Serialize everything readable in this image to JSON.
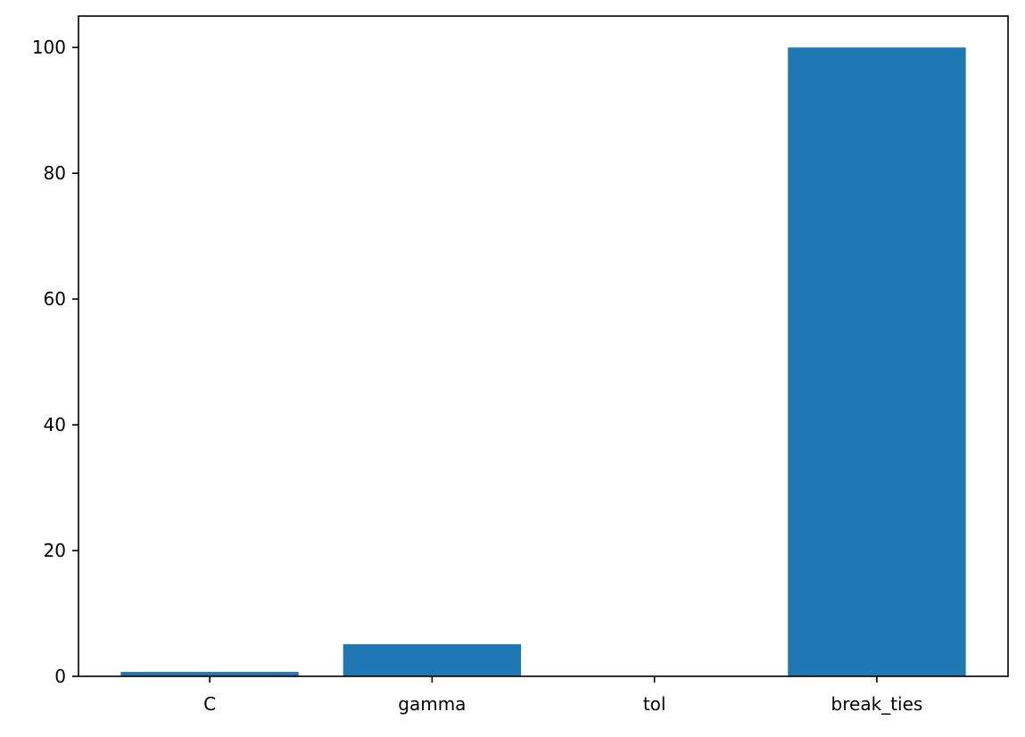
{
  "chart_data": {
    "type": "bar",
    "categories": [
      "C",
      "gamma",
      "tol",
      "break_ties"
    ],
    "values": [
      0.7,
      5.1,
      0.0,
      100
    ],
    "title": "",
    "xlabel": "",
    "ylabel": "",
    "ylim": [
      0,
      105
    ],
    "yticks": [
      0,
      20,
      40,
      60,
      80,
      100
    ],
    "grid": false,
    "bar_color": "#1f77b4"
  }
}
